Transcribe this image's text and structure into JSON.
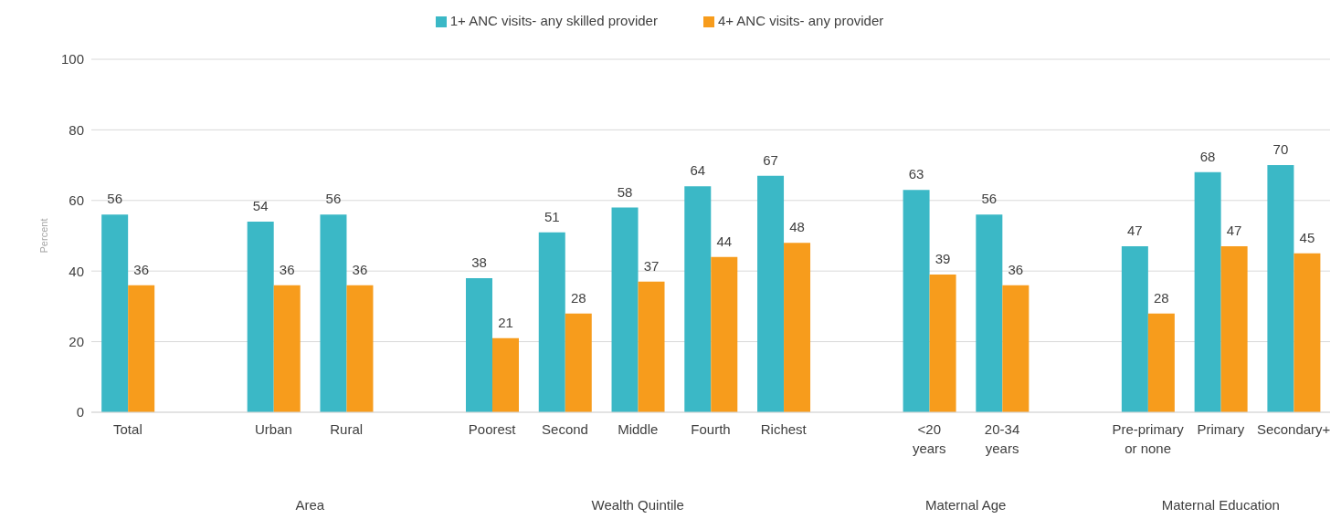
{
  "chart_data": {
    "type": "bar",
    "ylabel": "Percent",
    "categories": [
      "Total",
      null,
      "Urban",
      "Rural",
      null,
      "Poorest",
      "Second",
      "Middle",
      "Fourth",
      "Richest",
      null,
      "<20\nyears",
      "20-34\nyears",
      null,
      "Pre-primary\nor none",
      "Primary",
      "Secondary+"
    ],
    "series": [
      {
        "name": "1+ ANC visits- any skilled provider",
        "color": "#3bb8c6",
        "values": [
          56,
          null,
          54,
          56,
          null,
          38,
          51,
          58,
          64,
          67,
          null,
          63,
          56,
          null,
          47,
          68,
          70
        ]
      },
      {
        "name": "4+ ANC visits- any provider",
        "color": "#f79c1c",
        "values": [
          36,
          null,
          36,
          36,
          null,
          21,
          28,
          37,
          44,
          48,
          null,
          39,
          36,
          null,
          28,
          47,
          45
        ]
      }
    ],
    "annotations": [
      "Area",
      "Wealth Quintile",
      "Maternal Age",
      "Maternal Education"
    ],
    "ylim": [
      0,
      100
    ],
    "yticks": [
      0,
      20,
      40,
      60,
      80,
      100
    ],
    "grid": "y",
    "legend": "top",
    "data_labels": true
  }
}
